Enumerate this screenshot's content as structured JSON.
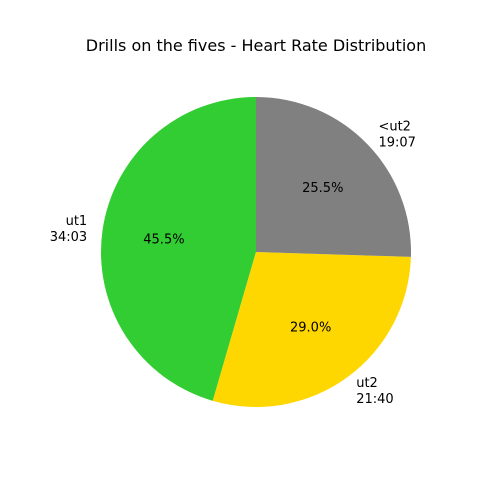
{
  "chart_data": {
    "type": "pie",
    "title": "Drills on the fives - Heart Rate Distribution",
    "start_angle_deg": 90,
    "direction": "counterclockwise",
    "slices": [
      {
        "label": "ut1",
        "time": "34:03",
        "value": 45.5,
        "pct_label": "45.5%",
        "color": "#32cd32"
      },
      {
        "label": "ut2",
        "time": "21:40",
        "value": 29.0,
        "pct_label": "29.0%",
        "color": "#ffd700"
      },
      {
        "label": "<ut2",
        "time": "19:07",
        "value": 25.5,
        "pct_label": "25.5%",
        "color": "#808080"
      }
    ]
  }
}
